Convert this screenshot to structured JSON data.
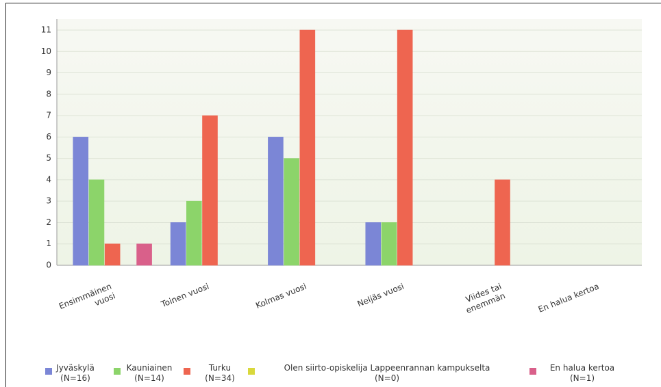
{
  "chart_data": {
    "type": "bar",
    "categories": [
      "Ensimmäinen\nvuosi",
      "Toinen vuosi",
      "Kolmas vuosi",
      "Neljäs vuosi",
      "Viides tai\nenemmän",
      "En halua kertoa"
    ],
    "series": [
      {
        "name": "Jyväskylä\n(N=16)",
        "color": "#7b86d6",
        "values": [
          6,
          2,
          6,
          2,
          0,
          0
        ]
      },
      {
        "name": "Kauniainen\n(N=14)",
        "color": "#8cd46a",
        "values": [
          4,
          3,
          5,
          2,
          0,
          0
        ]
      },
      {
        "name": "Turku\n(N=34)",
        "color": "#ee6550",
        "values": [
          1,
          7,
          11,
          11,
          4,
          0
        ]
      },
      {
        "name": "Olen siirto-opiskelija Lappeenrannan kampukselta\n(N=0)",
        "color": "#d9d83c",
        "values": [
          0,
          0,
          0,
          0,
          0,
          0
        ]
      },
      {
        "name": "En halua kertoa\n(N=1)",
        "color": "#d9608a",
        "values": [
          1,
          0,
          0,
          0,
          0,
          0
        ]
      }
    ],
    "ylim": [
      0,
      11
    ],
    "yticks": [
      0,
      1,
      2,
      3,
      4,
      5,
      6,
      7,
      8,
      9,
      10,
      11
    ],
    "grid": true,
    "legend": "bottom"
  }
}
